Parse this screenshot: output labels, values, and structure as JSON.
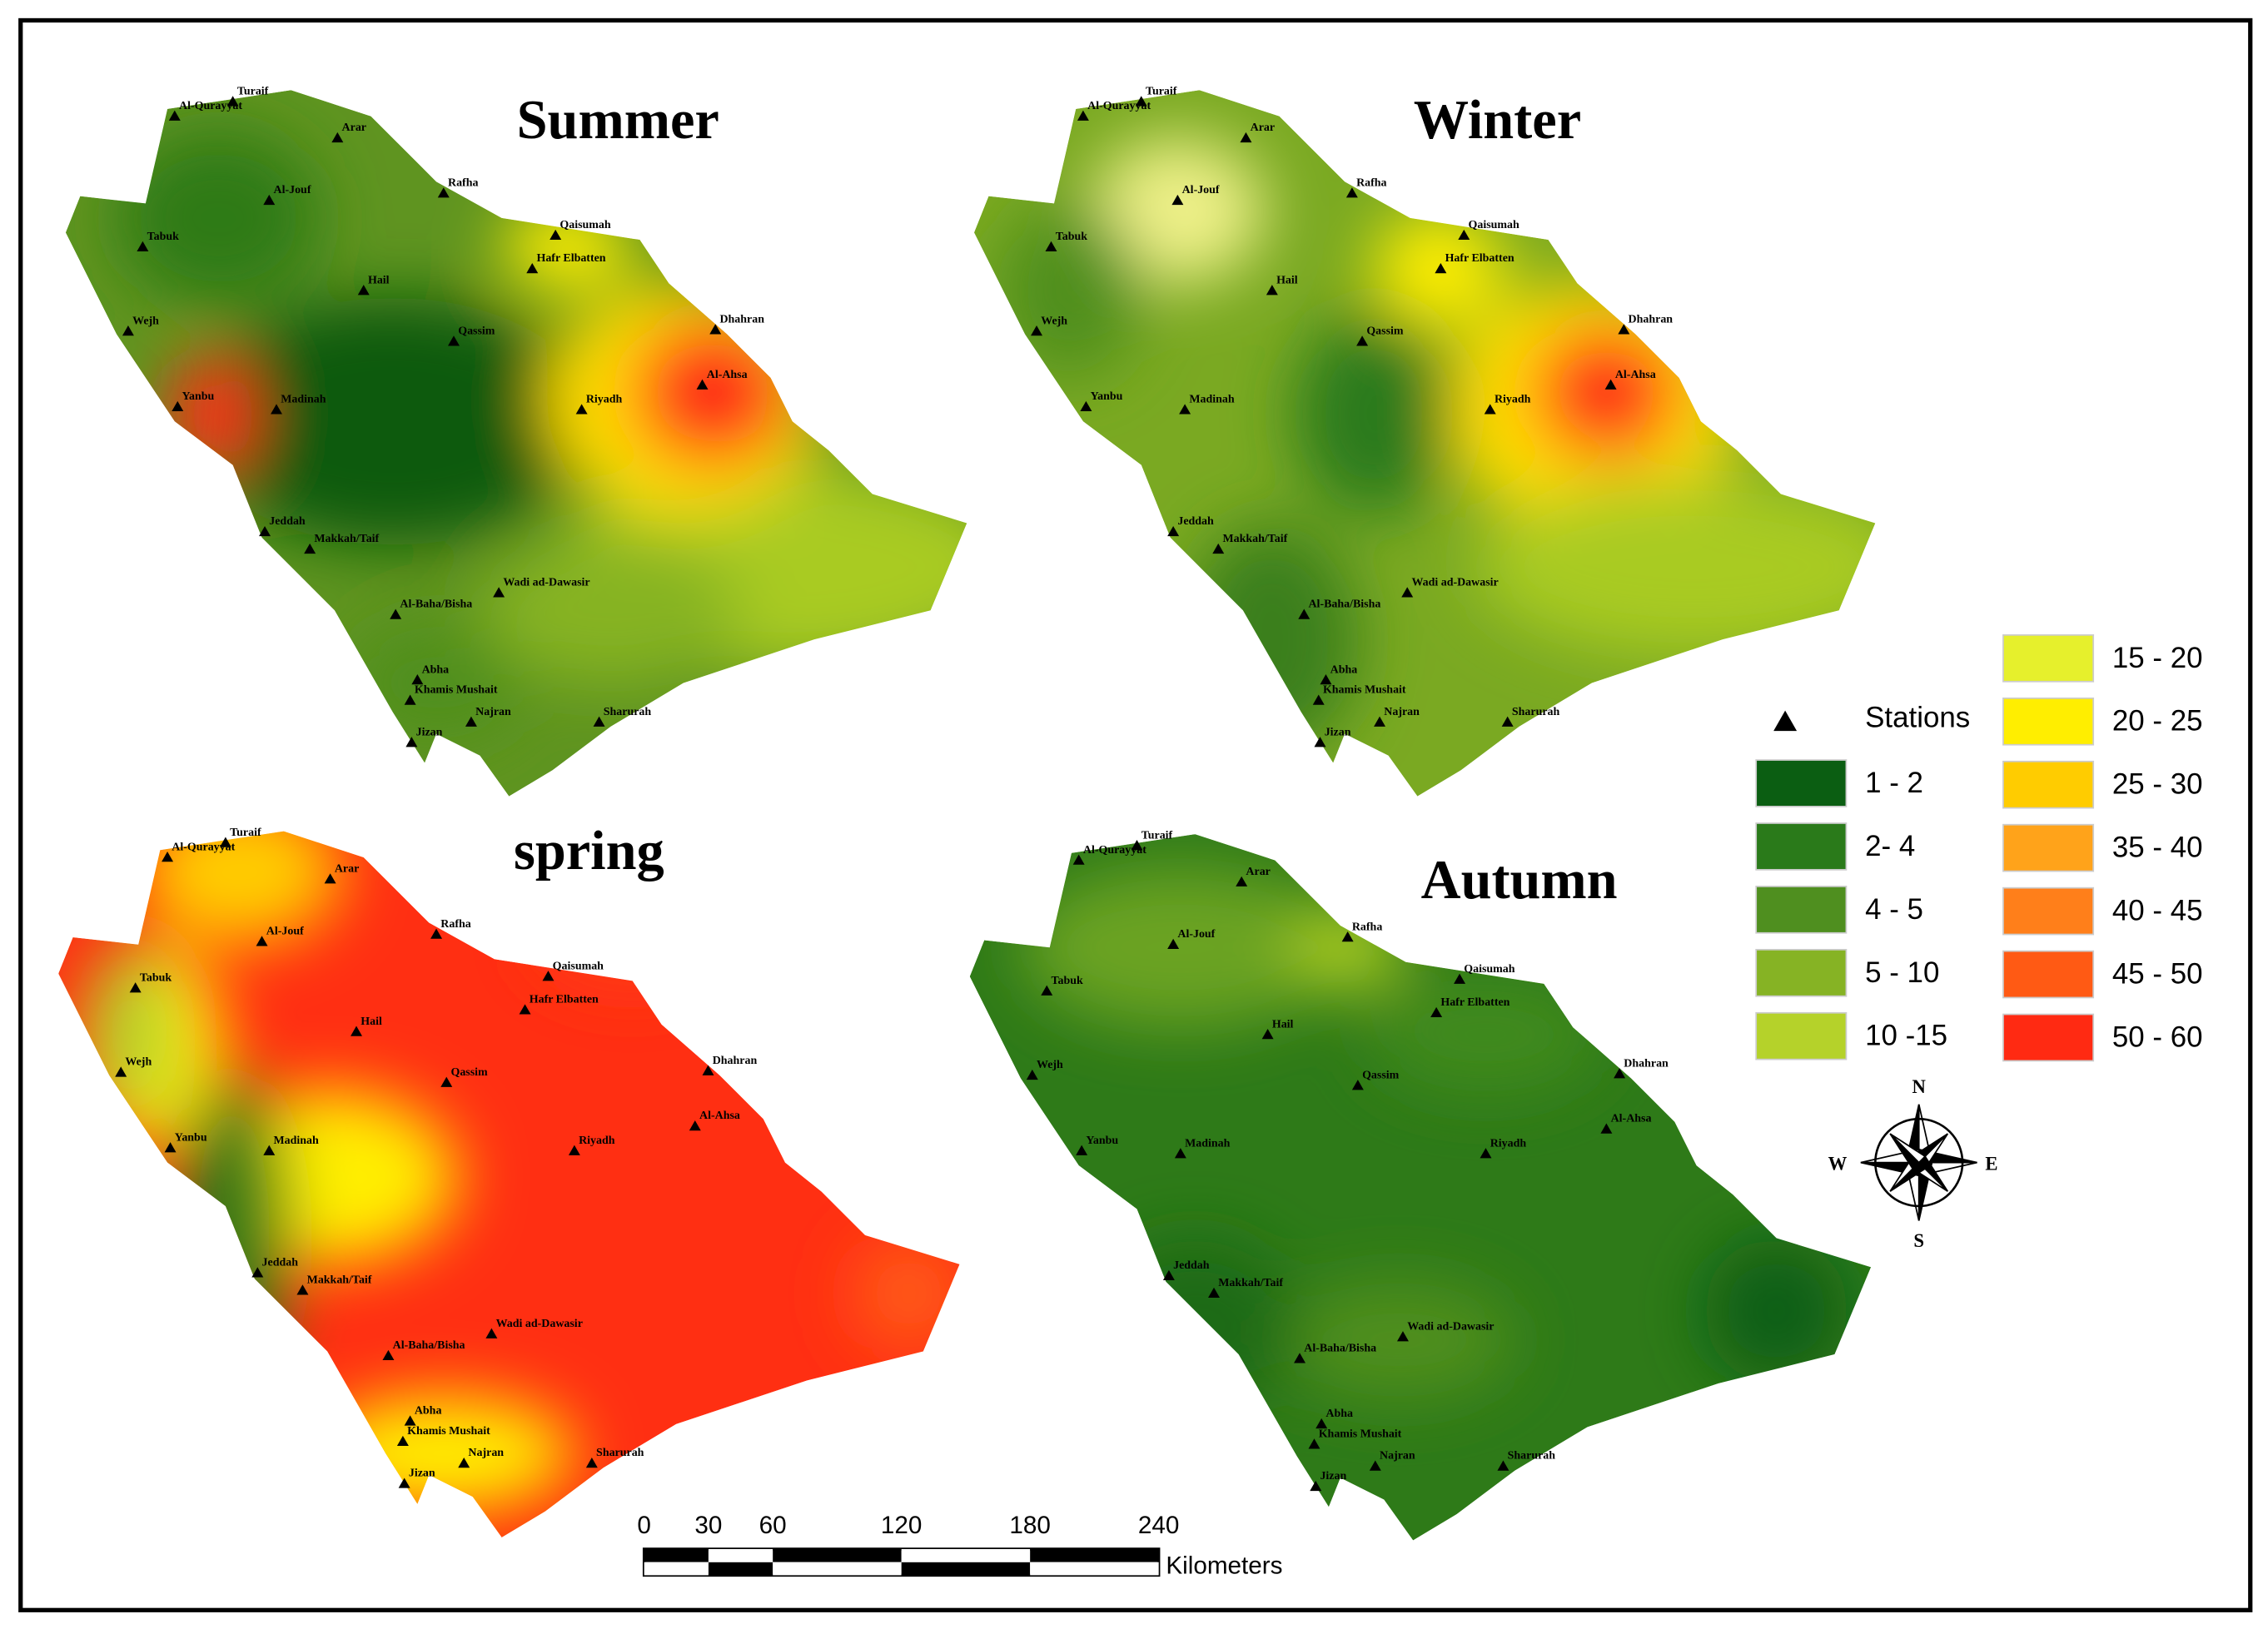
{
  "panels": [
    {
      "title": "Summer"
    },
    {
      "title": "Winter"
    },
    {
      "title": "spring"
    },
    {
      "title": "Autumn"
    }
  ],
  "stations": [
    "Al-Qurayyat",
    "Turaif",
    "Arar",
    "Al-Jouf",
    "Rafha",
    "Tabuk",
    "Qaisumah",
    "Hafr Elbatten",
    "Hail",
    "Qassim",
    "Dhahran",
    "Wejh",
    "Yanbu",
    "Madinah",
    "Al-Ahsa",
    "Riyadh",
    "Jeddah",
    "Makkah/Taif",
    "Wadi ad-Dawasir",
    "Al-Baha/Bisha",
    "Abha",
    "Khamis Mushait",
    "Najran",
    "Jizan",
    "Sharurah"
  ],
  "legend": {
    "stations_label": "Stations",
    "items": [
      {
        "label": "1 - 2",
        "color": "#0b5e12"
      },
      {
        "label": "2- 4",
        "color": "#2a7a1a"
      },
      {
        "label": "4 - 5",
        "color": "#4f8f1f"
      },
      {
        "label": "5 - 10",
        "color": "#86b324"
      },
      {
        "label": "10 -15",
        "color": "#b5d22a"
      },
      {
        "label": "15 - 20",
        "color": "#e6f02c"
      },
      {
        "label": "20 - 25",
        "color": "#ffee00"
      },
      {
        "label": "25 - 30",
        "color": "#ffcc00"
      },
      {
        "label": "35 - 40",
        "color": "#ffa31a"
      },
      {
        "label": "40 - 45",
        "color": "#ff7f1a"
      },
      {
        "label": "45 - 50",
        "color": "#ff5a14"
      },
      {
        "label": "50 - 60",
        "color": "#ff2a12"
      }
    ]
  },
  "scale_bar": {
    "ticks": [
      0,
      30,
      60,
      120,
      180,
      240
    ],
    "unit": "Kilometers"
  },
  "compass": {
    "n": "N",
    "e": "E",
    "s": "S",
    "w": "W"
  }
}
